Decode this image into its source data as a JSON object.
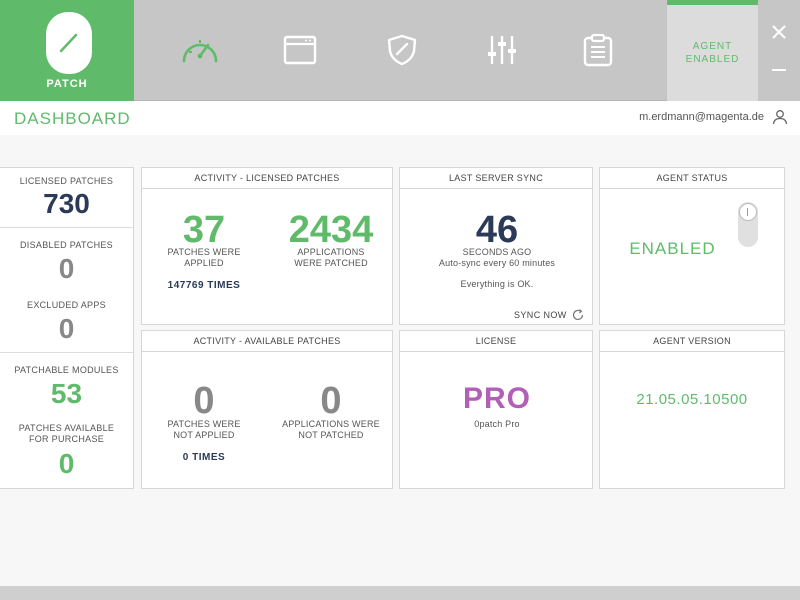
{
  "brand": {
    "name": "PATCH",
    "logo_icon": "slash-icon"
  },
  "nav": {
    "items": [
      {
        "name": "dashboard",
        "icon": "speedometer-icon",
        "active": true
      },
      {
        "name": "applications",
        "icon": "window-icon",
        "active": false
      },
      {
        "name": "security",
        "icon": "shield-icon",
        "active": false
      },
      {
        "name": "settings",
        "icon": "sliders-icon",
        "active": false
      },
      {
        "name": "report",
        "icon": "clipboard-icon",
        "active": false
      }
    ]
  },
  "agent_toggle": {
    "line1": "AGENT",
    "line2": "ENABLED"
  },
  "window_controls": {
    "close": "close-icon",
    "minimize": "minimize-icon"
  },
  "title": "DASHBOARD",
  "user": {
    "email": "m.erdmann@magenta.de"
  },
  "left_stats": {
    "licensed_label": "LICENSED PATCHES",
    "licensed_value": "730",
    "disabled_label": "DISABLED PATCHES",
    "disabled_value": "0",
    "excluded_label": "EXCLUDED APPS",
    "excluded_value": "0",
    "modules_label": "PATCHABLE MODULES",
    "modules_value": "53",
    "purchase_label_1": "PATCHES AVAILABLE",
    "purchase_label_2": "FOR PURCHASE",
    "purchase_value": "0"
  },
  "activity_licensed": {
    "title": "ACTIVITY - LICENSED PATCHES",
    "applied_value": "37",
    "applied_label_1": "PATCHES WERE",
    "applied_label_2": "APPLIED",
    "apps_value": "2434",
    "apps_label_1": "APPLICATIONS",
    "apps_label_2": "WERE PATCHED",
    "times": "147769 TIMES"
  },
  "last_sync": {
    "title": "LAST SERVER SYNC",
    "value": "46",
    "label": "SECONDS AGO",
    "auto": "Auto-sync every 60 minutes",
    "status": "Everything is OK.",
    "sync_now": "SYNC NOW"
  },
  "agent_status": {
    "title": "AGENT STATUS",
    "value": "ENABLED"
  },
  "activity_available": {
    "title": "ACTIVITY - AVAILABLE PATCHES",
    "not_applied_value": "0",
    "not_applied_label_1": "PATCHES WERE",
    "not_applied_label_2": "NOT APPLIED",
    "not_patched_value": "0",
    "not_patched_label_1": "APPLICATIONS WERE",
    "not_patched_label_2": "NOT PATCHED",
    "times": "0 TIMES"
  },
  "license": {
    "title": "LICENSE",
    "value": "PRO",
    "product": "0patch Pro"
  },
  "agent_version": {
    "title": "AGENT VERSION",
    "value": "21.05.05.10500"
  },
  "colors": {
    "accent": "#5fbb6a",
    "navy": "#2b3a57",
    "grey": "#888888",
    "purple": "#b25fb6",
    "header_bg": "#c6c6c6"
  }
}
